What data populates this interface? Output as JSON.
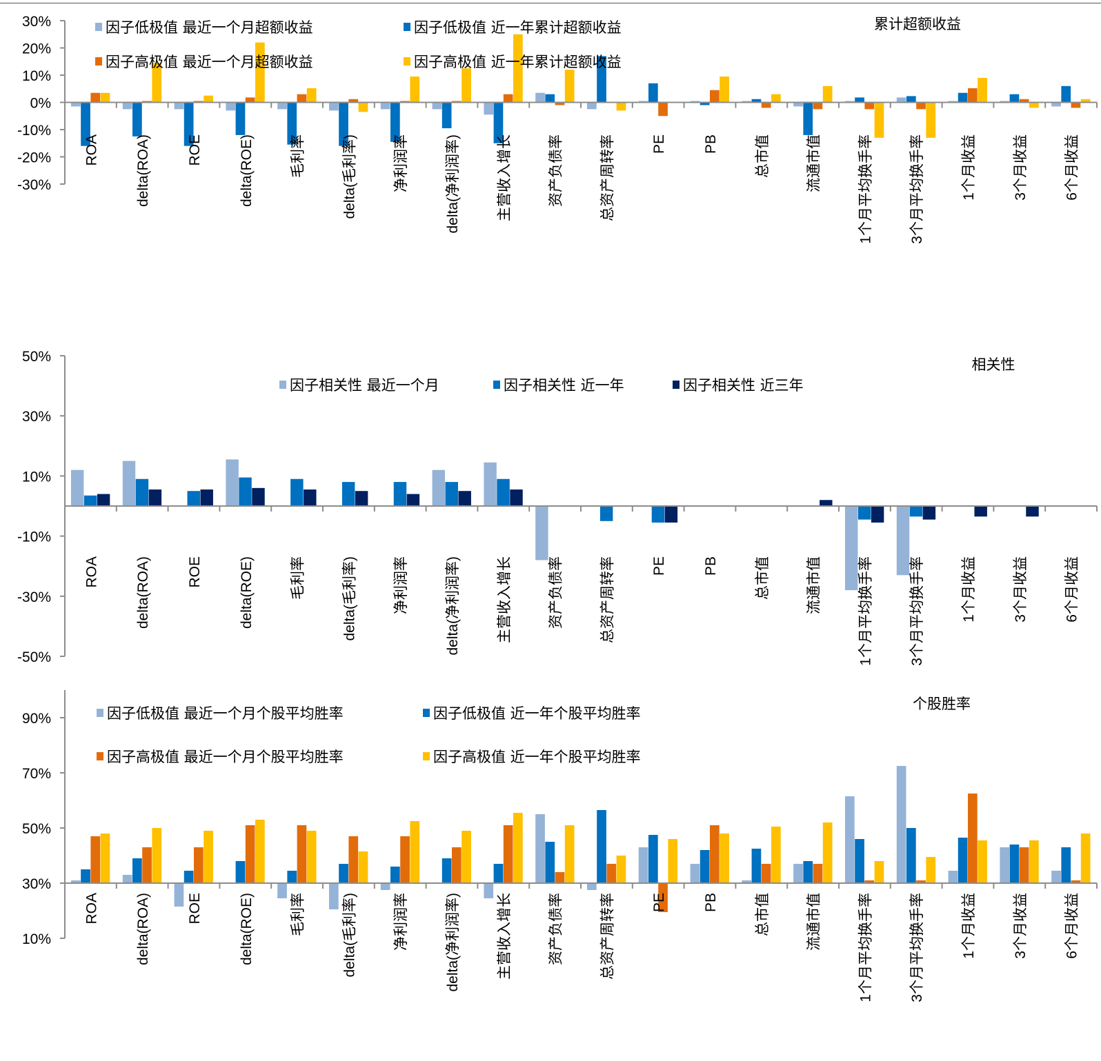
{
  "colors": {
    "light_blue": "#95b3d7",
    "mid_blue": "#0070c0",
    "orange": "#e36c0a",
    "gold": "#ffc000",
    "navy": "#002060",
    "axis": "#8c8c8c"
  },
  "categories": [
    "ROA",
    "delta(ROA)",
    "ROE",
    "delta(ROE)",
    "毛利率",
    "delta(毛利率)",
    "净利润率",
    "delta(净利润率)",
    "主营收入增长",
    "资产负债率",
    "总资产周转率",
    "PE",
    "PB",
    "总市值",
    "流通市值",
    "1个月平均换手率",
    "3个月平均换手率",
    "1个月收益",
    "3个月收益",
    "6个月收益"
  ],
  "chart_data": [
    {
      "type": "bar",
      "title": "累计超额收益",
      "xlabel": "",
      "ylabel": "",
      "ylim": [
        -30,
        30
      ],
      "yticks": [
        "30%",
        "20%",
        "10%",
        "0%",
        "-10%",
        "-20%",
        "-30%"
      ],
      "ytick_values": [
        30,
        20,
        10,
        0,
        -10,
        -20,
        -30
      ],
      "baseline": 0,
      "legend_position": "top",
      "categories": [
        "ROA",
        "delta(ROA)",
        "ROE",
        "delta(ROE)",
        "毛利率",
        "delta(毛利率)",
        "净利润率",
        "delta(净利润率)",
        "主营收入增长",
        "资产负债率",
        "总资产周转率",
        "PE",
        "PB",
        "总市值",
        "流通市值",
        "1个月平均换手率",
        "3个月平均换手率",
        "1个月收益",
        "3个月收益",
        "6个月收益"
      ],
      "series": [
        {
          "name": "因子低极值 最近一个月超额收益",
          "color_key": "light_blue",
          "values": [
            -1.5,
            -2.5,
            -2.5,
            -3,
            -2.5,
            -3,
            -2.5,
            -2.5,
            -4.5,
            3.5,
            -2.5,
            0.5,
            0.5,
            0.5,
            -1.5,
            0.5,
            1.8,
            0.5,
            0.5,
            -1.5
          ]
        },
        {
          "name": "因子低极值 近一年累计超额收益",
          "color_key": "mid_blue",
          "values": [
            -16,
            -12.5,
            -16,
            -12,
            -15.5,
            -16,
            -14.5,
            -9.5,
            -15,
            3,
            17,
            7,
            -1,
            1.2,
            -12,
            1.8,
            2.3,
            3.5,
            3,
            6
          ]
        },
        {
          "name": "因子高极值 最近一个月超额收益",
          "color_key": "orange",
          "values": [
            3.5,
            0.5,
            0.5,
            1.8,
            3,
            1.2,
            0.5,
            0.5,
            3,
            -1,
            0,
            -5,
            4.5,
            -2,
            -2.5,
            -2.5,
            -2.5,
            5.2,
            1.2,
            -2
          ]
        },
        {
          "name": "因子高极值 近一年累计超额收益",
          "color_key": "gold",
          "values": [
            3.5,
            14.5,
            2.5,
            22,
            5.2,
            -3.5,
            9.5,
            12.5,
            25,
            12,
            -3,
            0,
            9.5,
            3,
            6,
            -13,
            -13,
            9,
            -2,
            1.2
          ]
        }
      ]
    },
    {
      "type": "bar",
      "title": "相关性",
      "xlabel": "",
      "ylabel": "",
      "ylim": [
        -50,
        50
      ],
      "yticks": [
        "50%",
        "30%",
        "10%",
        "-10%",
        "-30%",
        "-50%"
      ],
      "ytick_values": [
        50,
        30,
        10,
        -10,
        -30,
        -50
      ],
      "baseline": 0,
      "legend_position": "top",
      "categories": [
        "ROA",
        "delta(ROA)",
        "ROE",
        "delta(ROE)",
        "毛利率",
        "delta(毛利率)",
        "净利润率",
        "delta(净利润率)",
        "主营收入增长",
        "资产负债率",
        "总资产周转率",
        "PE",
        "PB",
        "总市值",
        "流通市值",
        "1个月平均换手率",
        "3个月平均换手率",
        "1个月收益",
        "3个月收益",
        "6个月收益"
      ],
      "series": [
        {
          "name": "因子相关性 最近一个月",
          "color_key": "light_blue",
          "values": [
            12,
            15,
            0,
            15.5,
            0,
            0,
            0,
            12,
            14.5,
            -18,
            0,
            0,
            0,
            0,
            0,
            -28,
            -23,
            0,
            0,
            0
          ]
        },
        {
          "name": "因子相关性 近一年",
          "color_key": "mid_blue",
          "values": [
            3.5,
            9,
            5,
            9.5,
            9,
            8,
            8,
            8,
            9,
            0,
            -5,
            -5.5,
            0,
            0,
            0,
            -4.5,
            -3.5,
            0,
            0,
            0
          ]
        },
        {
          "name": "因子相关性 近三年",
          "color_key": "navy",
          "values": [
            4,
            5.5,
            5.5,
            6,
            5.5,
            5,
            4,
            5,
            5.5,
            0,
            0,
            -5.5,
            0,
            0,
            2,
            -5.5,
            -4.5,
            -3.5,
            -3.5,
            0
          ]
        }
      ]
    },
    {
      "type": "bar",
      "title": "个股胜率",
      "xlabel": "",
      "ylabel": "",
      "ylim": [
        10,
        100
      ],
      "yticks": [
        "90%",
        "70%",
        "50%",
        "30%",
        "10%"
      ],
      "ytick_values": [
        90,
        70,
        50,
        30,
        10
      ],
      "baseline": 30,
      "legend_position": "top",
      "categories": [
        "ROA",
        "delta(ROA)",
        "ROE",
        "delta(ROE)",
        "毛利率",
        "delta(毛利率)",
        "净利润率",
        "delta(净利润率)",
        "主营收入增长",
        "资产负债率",
        "总资产周转率",
        "PE",
        "PB",
        "总市值",
        "流通市值",
        "1个月平均换手率",
        "3个月平均换手率",
        "1个月收益",
        "3个月收益",
        "6个月收益"
      ],
      "series": [
        {
          "name": "因子低极值 最近一个月个股平均胜率",
          "color_key": "light_blue",
          "values": [
            31,
            33,
            21.5,
            30,
            24.5,
            20.5,
            27.5,
            30,
            24.5,
            55,
            27.5,
            43,
            37,
            31,
            37,
            61.5,
            72.5,
            34.5,
            43,
            34.5
          ]
        },
        {
          "name": "因子低极值 近一年个股平均胜率",
          "color_key": "mid_blue",
          "values": [
            35,
            39,
            34.5,
            38,
            34.5,
            37,
            36,
            39,
            37,
            45,
            56.5,
            47.5,
            42,
            42.5,
            38,
            46,
            50,
            46.5,
            44,
            43
          ]
        },
        {
          "name": "因子高极值 最近一个月个股平均胜率",
          "color_key": "orange",
          "values": [
            47,
            43,
            43,
            51,
            51,
            47,
            47,
            43,
            51,
            34,
            37,
            19.5,
            51,
            37,
            37,
            31,
            31,
            62.5,
            43,
            31
          ]
        },
        {
          "name": "因子高极值 近一年个股平均胜率",
          "color_key": "gold",
          "values": [
            48,
            50,
            49,
            53,
            49,
            41.5,
            52.5,
            49,
            55.5,
            51,
            40,
            46,
            48,
            50.5,
            52,
            38,
            39.5,
            45.5,
            45.5,
            48
          ]
        }
      ]
    }
  ]
}
